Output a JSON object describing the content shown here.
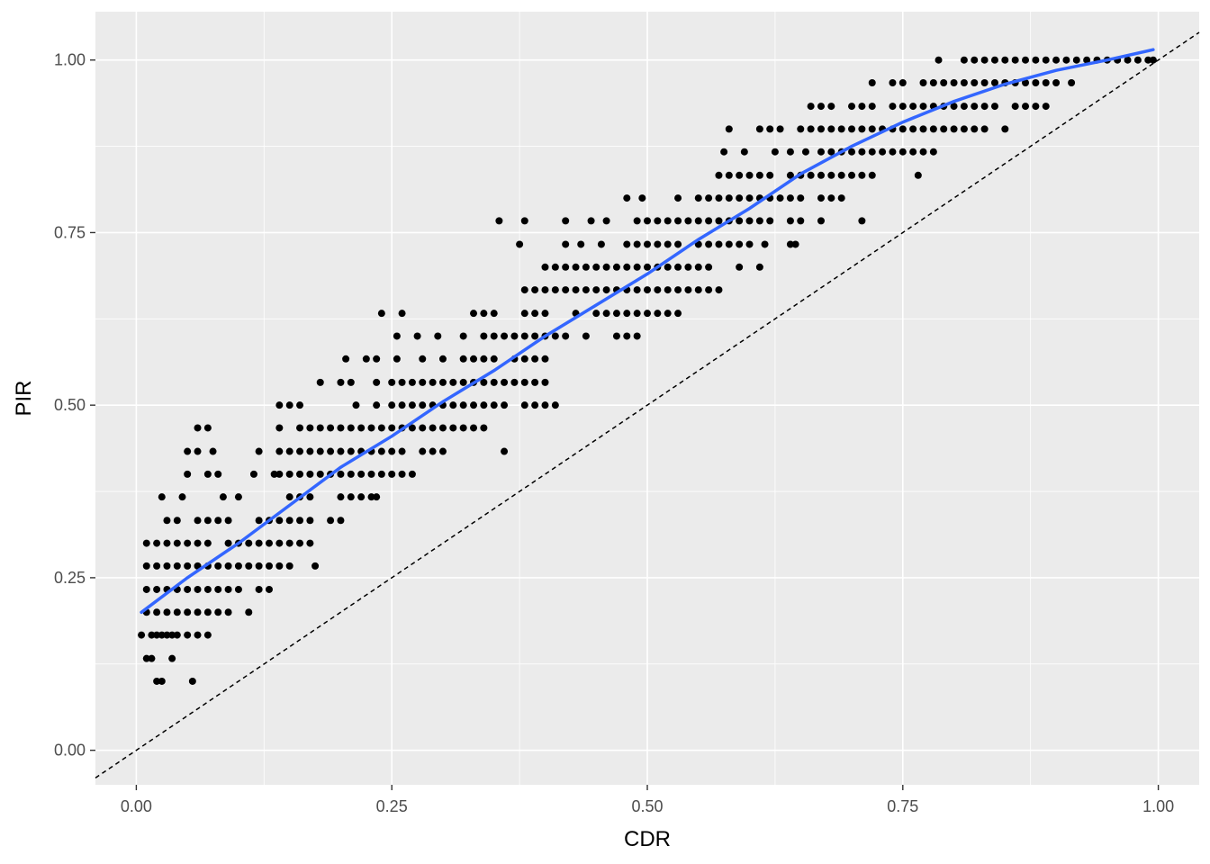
{
  "chart_data": {
    "type": "scatter",
    "xlabel": "CDR",
    "ylabel": "PIR",
    "xlim": [
      -0.04,
      1.04
    ],
    "ylim": [
      -0.05,
      1.07
    ],
    "x_ticks": [
      {
        "value": 0.0,
        "label": "0.00"
      },
      {
        "value": 0.25,
        "label": "0.25"
      },
      {
        "value": 0.5,
        "label": "0.50"
      },
      {
        "value": 0.75,
        "label": "0.75"
      },
      {
        "value": 1.0,
        "label": "1.00"
      }
    ],
    "y_ticks": [
      {
        "value": 0.0,
        "label": "0.00"
      },
      {
        "value": 0.25,
        "label": "0.25"
      },
      {
        "value": 0.5,
        "label": "0.50"
      },
      {
        "value": 0.75,
        "label": "0.75"
      },
      {
        "value": 1.0,
        "label": "1.00"
      }
    ],
    "grid": true,
    "background": "#ebebeb",
    "point_color": "#000000",
    "smooth_color": "#3366ff",
    "reference_line": {
      "type": "identity",
      "style": "dashed",
      "color": "#000000"
    },
    "rows": [
      {
        "y": 1.0,
        "x": [
          0.785,
          0.81,
          0.82,
          0.83,
          0.84,
          0.85,
          0.86,
          0.87,
          0.88,
          0.89,
          0.9,
          0.91,
          0.92,
          0.93,
          0.94,
          0.95,
          0.96,
          0.97,
          0.98,
          0.99,
          0.995
        ]
      },
      {
        "y": 0.967,
        "x": [
          0.72,
          0.74,
          0.75,
          0.77,
          0.78,
          0.79,
          0.8,
          0.81,
          0.82,
          0.83,
          0.84,
          0.85,
          0.86,
          0.87,
          0.88,
          0.89,
          0.9,
          0.915
        ]
      },
      {
        "y": 0.933,
        "x": [
          0.66,
          0.67,
          0.68,
          0.7,
          0.71,
          0.72,
          0.74,
          0.75,
          0.76,
          0.77,
          0.78,
          0.79,
          0.8,
          0.81,
          0.82,
          0.83,
          0.84,
          0.86,
          0.87,
          0.88,
          0.89
        ]
      },
      {
        "y": 0.9,
        "x": [
          0.58,
          0.61,
          0.62,
          0.63,
          0.65,
          0.66,
          0.67,
          0.68,
          0.69,
          0.7,
          0.71,
          0.72,
          0.73,
          0.74,
          0.75,
          0.76,
          0.77,
          0.78,
          0.79,
          0.8,
          0.81,
          0.82,
          0.83,
          0.85
        ]
      },
      {
        "y": 0.867,
        "x": [
          0.575,
          0.595,
          0.625,
          0.64,
          0.655,
          0.67,
          0.68,
          0.69,
          0.7,
          0.71,
          0.72,
          0.73,
          0.74,
          0.75,
          0.76,
          0.77,
          0.78
        ]
      },
      {
        "y": 0.833,
        "x": [
          0.57,
          0.58,
          0.59,
          0.6,
          0.61,
          0.62,
          0.64,
          0.65,
          0.66,
          0.67,
          0.68,
          0.69,
          0.7,
          0.71,
          0.72,
          0.765
        ]
      },
      {
        "y": 0.8,
        "x": [
          0.48,
          0.495,
          0.53,
          0.55,
          0.56,
          0.57,
          0.58,
          0.59,
          0.6,
          0.61,
          0.62,
          0.63,
          0.64,
          0.65,
          0.67,
          0.68,
          0.69
        ]
      },
      {
        "y": 0.767,
        "x": [
          0.355,
          0.38,
          0.42,
          0.445,
          0.46,
          0.49,
          0.5,
          0.51,
          0.52,
          0.53,
          0.54,
          0.55,
          0.56,
          0.57,
          0.58,
          0.59,
          0.6,
          0.61,
          0.62,
          0.64,
          0.65,
          0.67,
          0.71
        ]
      },
      {
        "y": 0.733,
        "x": [
          0.375,
          0.42,
          0.435,
          0.455,
          0.48,
          0.49,
          0.5,
          0.51,
          0.52,
          0.53,
          0.55,
          0.56,
          0.57,
          0.58,
          0.59,
          0.6,
          0.615,
          0.64,
          0.645
        ]
      },
      {
        "y": 0.7,
        "x": [
          0.4,
          0.41,
          0.42,
          0.43,
          0.44,
          0.45,
          0.46,
          0.47,
          0.48,
          0.49,
          0.5,
          0.51,
          0.52,
          0.53,
          0.54,
          0.55,
          0.56,
          0.59,
          0.61
        ]
      },
      {
        "y": 0.667,
        "x": [
          0.38,
          0.39,
          0.4,
          0.41,
          0.42,
          0.43,
          0.44,
          0.45,
          0.46,
          0.47,
          0.48,
          0.49,
          0.5,
          0.51,
          0.52,
          0.53,
          0.54,
          0.55,
          0.56,
          0.57
        ]
      },
      {
        "y": 0.633,
        "x": [
          0.24,
          0.26,
          0.33,
          0.34,
          0.35,
          0.38,
          0.39,
          0.4,
          0.43,
          0.45,
          0.46,
          0.47,
          0.48,
          0.49,
          0.5,
          0.51,
          0.52,
          0.53
        ]
      },
      {
        "y": 0.6,
        "x": [
          0.255,
          0.275,
          0.295,
          0.32,
          0.34,
          0.35,
          0.36,
          0.37,
          0.38,
          0.39,
          0.4,
          0.41,
          0.42,
          0.44,
          0.47,
          0.48,
          0.49
        ]
      },
      {
        "y": 0.567,
        "x": [
          0.205,
          0.225,
          0.235,
          0.255,
          0.28,
          0.3,
          0.32,
          0.33,
          0.34,
          0.35,
          0.37,
          0.38,
          0.39,
          0.4
        ]
      },
      {
        "y": 0.533,
        "x": [
          0.18,
          0.2,
          0.21,
          0.235,
          0.25,
          0.26,
          0.27,
          0.28,
          0.29,
          0.3,
          0.31,
          0.32,
          0.33,
          0.34,
          0.35,
          0.36,
          0.37,
          0.38,
          0.39,
          0.4
        ]
      },
      {
        "y": 0.5,
        "x": [
          0.14,
          0.15,
          0.16,
          0.215,
          0.235,
          0.25,
          0.26,
          0.27,
          0.28,
          0.29,
          0.3,
          0.31,
          0.32,
          0.33,
          0.34,
          0.35,
          0.36,
          0.38,
          0.39,
          0.4,
          0.41
        ]
      },
      {
        "y": 0.467,
        "x": [
          0.06,
          0.07,
          0.14,
          0.16,
          0.17,
          0.18,
          0.19,
          0.2,
          0.21,
          0.22,
          0.23,
          0.24,
          0.25,
          0.26,
          0.27,
          0.28,
          0.29,
          0.3,
          0.31,
          0.32,
          0.33,
          0.34
        ]
      },
      {
        "y": 0.433,
        "x": [
          0.05,
          0.06,
          0.075,
          0.12,
          0.14,
          0.15,
          0.16,
          0.17,
          0.18,
          0.19,
          0.2,
          0.21,
          0.22,
          0.23,
          0.24,
          0.25,
          0.26,
          0.28,
          0.29,
          0.3,
          0.36
        ]
      },
      {
        "y": 0.4,
        "x": [
          0.05,
          0.07,
          0.08,
          0.115,
          0.135,
          0.14,
          0.15,
          0.16,
          0.17,
          0.18,
          0.19,
          0.2,
          0.21,
          0.22,
          0.23,
          0.24,
          0.25,
          0.26,
          0.27
        ]
      },
      {
        "y": 0.367,
        "x": [
          0.025,
          0.045,
          0.085,
          0.1,
          0.15,
          0.16,
          0.17,
          0.2,
          0.21,
          0.22,
          0.23,
          0.235
        ]
      },
      {
        "y": 0.333,
        "x": [
          0.03,
          0.04,
          0.06,
          0.07,
          0.08,
          0.09,
          0.12,
          0.13,
          0.14,
          0.15,
          0.16,
          0.17,
          0.19,
          0.2
        ]
      },
      {
        "y": 0.3,
        "x": [
          0.01,
          0.02,
          0.03,
          0.04,
          0.05,
          0.06,
          0.07,
          0.09,
          0.1,
          0.11,
          0.12,
          0.13,
          0.14,
          0.15,
          0.16,
          0.17
        ]
      },
      {
        "y": 0.267,
        "x": [
          0.01,
          0.02,
          0.03,
          0.04,
          0.05,
          0.06,
          0.07,
          0.08,
          0.09,
          0.1,
          0.11,
          0.12,
          0.13,
          0.14,
          0.15,
          0.175
        ]
      },
      {
        "y": 0.233,
        "x": [
          0.01,
          0.02,
          0.03,
          0.04,
          0.05,
          0.06,
          0.07,
          0.08,
          0.09,
          0.1,
          0.12,
          0.13
        ]
      },
      {
        "y": 0.2,
        "x": [
          0.01,
          0.02,
          0.03,
          0.04,
          0.05,
          0.06,
          0.07,
          0.08,
          0.09,
          0.11
        ]
      },
      {
        "y": 0.167,
        "x": [
          0.005,
          0.015,
          0.02,
          0.025,
          0.03,
          0.035,
          0.04,
          0.05,
          0.06,
          0.07
        ]
      },
      {
        "y": 0.133,
        "x": [
          0.01,
          0.015,
          0.035
        ]
      },
      {
        "y": 0.1,
        "x": [
          0.02,
          0.025,
          0.055
        ]
      }
    ],
    "smooth": {
      "x": [
        0.005,
        0.05,
        0.1,
        0.15,
        0.2,
        0.25,
        0.3,
        0.35,
        0.4,
        0.45,
        0.5,
        0.55,
        0.6,
        0.65,
        0.7,
        0.75,
        0.8,
        0.85,
        0.9,
        0.95,
        0.995
      ],
      "y": [
        0.2,
        0.25,
        0.3,
        0.355,
        0.41,
        0.455,
        0.505,
        0.55,
        0.6,
        0.645,
        0.69,
        0.74,
        0.785,
        0.835,
        0.875,
        0.91,
        0.94,
        0.965,
        0.985,
        1.0,
        1.015
      ]
    }
  }
}
